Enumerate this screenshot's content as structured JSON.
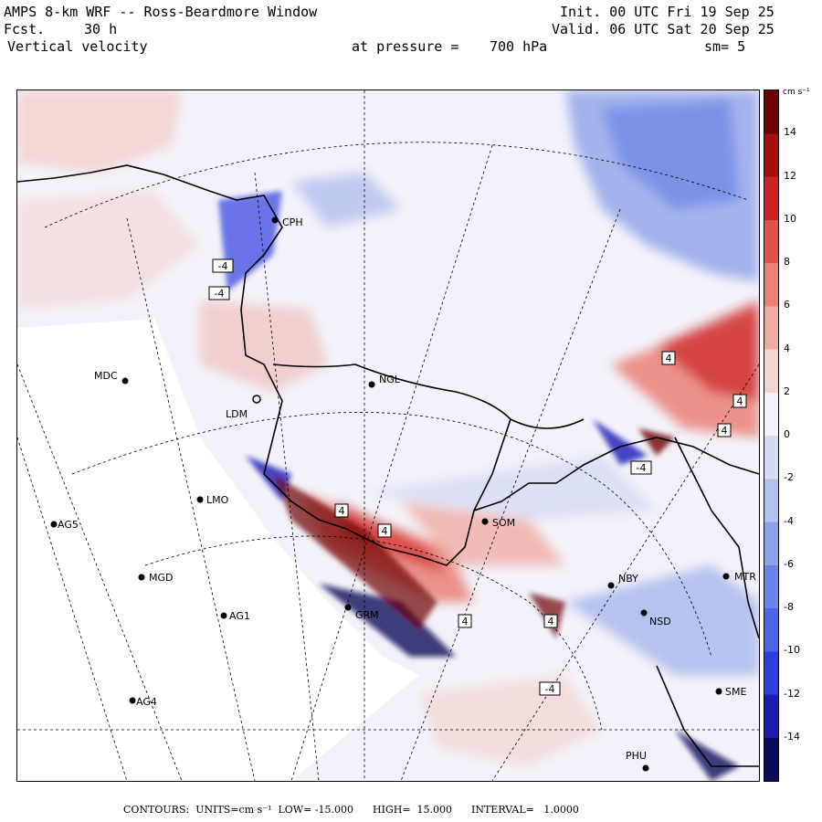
{
  "header": {
    "title": "AMPS 8-km WRF -- Ross-Beardmore Window",
    "init_label": "Init. 00 UTC Fri 19 Sep 25",
    "fcst_label": "Fcst.",
    "fcst_value": "30 h",
    "valid_label": "Valid. 06 UTC Sat 20 Sep 25",
    "field": "Vertical velocity",
    "level_label": "at pressure =",
    "level_value": "700 hPa",
    "smoothing": "sm= 5"
  },
  "colorbar": {
    "units": "cm s⁻¹",
    "ticks": [
      "14",
      "12",
      "10",
      "8",
      "6",
      "4",
      "2",
      "0",
      "-2",
      "-4",
      "-6",
      "-8",
      "-10",
      "-12",
      "-14"
    ],
    "tick_values": [
      14,
      12,
      10,
      8,
      6,
      4,
      2,
      0,
      -2,
      -4,
      -6,
      -8,
      -10,
      -12,
      -14
    ],
    "min": -16,
    "max": 16,
    "colors": [
      "#0a0a5c",
      "#1c1cb4",
      "#2e3ee0",
      "#4b64e8",
      "#6a84e6",
      "#8ea2e8",
      "#b3bfee",
      "#d6dbf4",
      "#f3f2fa",
      "#f4d4d0",
      "#f0aca4",
      "#ea8076",
      "#e0524a",
      "#cc2222",
      "#a80e0e",
      "#6e0202"
    ]
  },
  "stations": [
    {
      "id": "MDC"
    },
    {
      "id": "NGL"
    },
    {
      "id": "CPH"
    },
    {
      "id": "LMO"
    },
    {
      "id": "AG5"
    },
    {
      "id": "MGD"
    },
    {
      "id": "AG1"
    },
    {
      "id": "AG4"
    },
    {
      "id": "SOM"
    },
    {
      "id": "NBY"
    },
    {
      "id": "NSD"
    },
    {
      "id": "GRM"
    },
    {
      "id": "PHU"
    },
    {
      "id": "MTR"
    },
    {
      "id": "SME"
    },
    {
      "id": "LDM"
    }
  ],
  "contour_labels": [
    "4",
    "4",
    "4",
    "4",
    "4",
    "4",
    "4",
    "-4",
    "-4",
    "-4",
    "-4"
  ],
  "footer": {
    "text": "CONTOURS:  UNITS=cm s⁻¹  LOW= -15.000      HIGH=  15.000      INTERVAL=   1.0000"
  }
}
